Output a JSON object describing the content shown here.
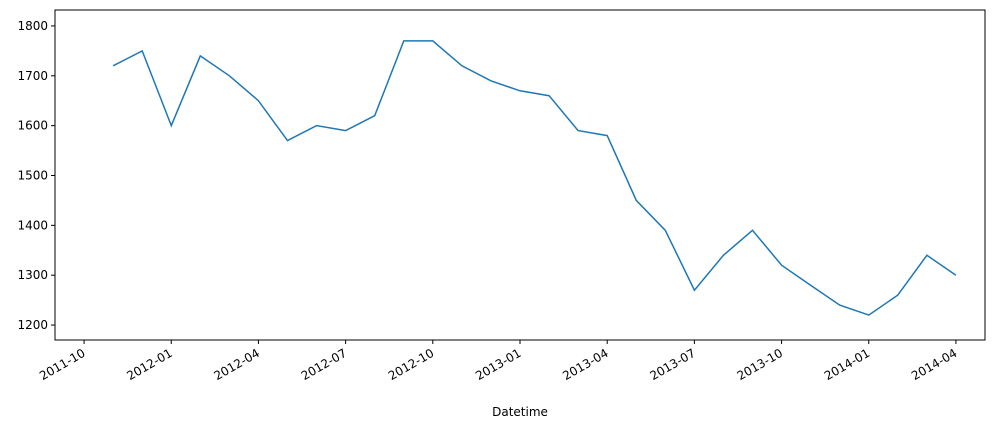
{
  "chart_data": {
    "type": "line",
    "xlabel": "Datetime",
    "x": [
      "2011-11",
      "2011-12",
      "2012-01",
      "2012-02",
      "2012-03",
      "2012-04",
      "2012-05",
      "2012-06",
      "2012-07",
      "2012-08",
      "2012-09",
      "2012-10",
      "2012-11",
      "2012-12",
      "2013-01",
      "2013-02",
      "2013-03",
      "2013-04",
      "2013-05",
      "2013-06",
      "2013-07",
      "2013-08",
      "2013-09",
      "2013-10",
      "2013-11",
      "2013-12",
      "2014-01",
      "2014-02",
      "2014-03",
      "2014-04"
    ],
    "values": [
      1720,
      1750,
      1600,
      1740,
      1700,
      1650,
      1570,
      1600,
      1590,
      1620,
      1770,
      1770,
      1720,
      1690,
      1670,
      1660,
      1590,
      1580,
      1450,
      1390,
      1270,
      1340,
      1390,
      1320,
      1280,
      1240,
      1220,
      1260,
      1340,
      1300
    ],
    "color": "#1f77b4",
    "xlim": [
      "2011-09",
      "2014-05"
    ],
    "xticks": [
      "2011-10",
      "2012-01",
      "2012-04",
      "2012-07",
      "2012-10",
      "2013-01",
      "2013-04",
      "2013-07",
      "2013-10",
      "2014-01",
      "2014-04"
    ],
    "ylim": [
      1170,
      1832
    ],
    "yticks": [
      1200,
      1300,
      1400,
      1500,
      1600,
      1700,
      1800
    ]
  }
}
